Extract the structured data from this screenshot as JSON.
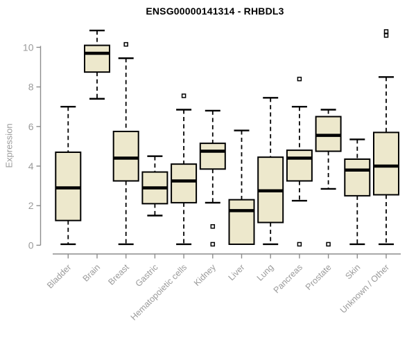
{
  "title": "ENSG00000141314 - RHBDL3",
  "chart_data": {
    "type": "boxplot",
    "title": "ENSG00000141314 - RHBDL3",
    "xlabel": "",
    "ylabel": "Expression",
    "ylim": [
      0,
      10.9
    ],
    "yticks": [
      0,
      2,
      4,
      6,
      8,
      10
    ],
    "grid": false,
    "legend": "none",
    "categories": [
      "Bladder",
      "Brain",
      "Breast",
      "Gastric",
      "Hematopoietic cells",
      "Kidney",
      "Liver",
      "Lung",
      "Pancreas",
      "Prostate",
      "Skin",
      "Unknown / Other"
    ],
    "boxes": [
      {
        "category": "Bladder",
        "whisker_low": 0.05,
        "q1": 1.25,
        "median": 2.9,
        "q3": 4.7,
        "whisker_high": 7.0,
        "outliers": []
      },
      {
        "category": "Brain",
        "whisker_low": 7.4,
        "q1": 8.75,
        "median": 9.7,
        "q3": 10.1,
        "whisker_high": 10.85,
        "outliers": []
      },
      {
        "category": "Breast",
        "whisker_low": 0.05,
        "q1": 3.25,
        "median": 4.4,
        "q3": 5.75,
        "whisker_high": 9.45,
        "outliers": [
          10.15
        ]
      },
      {
        "category": "Gastric",
        "whisker_low": 1.5,
        "q1": 2.1,
        "median": 2.9,
        "q3": 3.7,
        "whisker_high": 4.5,
        "outliers": []
      },
      {
        "category": "Hematopoietic cells",
        "whisker_low": 0.05,
        "q1": 2.15,
        "median": 3.25,
        "q3": 4.1,
        "whisker_high": 6.85,
        "outliers": [
          7.55
        ]
      },
      {
        "category": "Kidney",
        "whisker_low": 2.15,
        "q1": 3.85,
        "median": 4.75,
        "q3": 5.15,
        "whisker_high": 6.8,
        "outliers": [
          0.95,
          0.05
        ]
      },
      {
        "category": "Liver",
        "whisker_low": 0.05,
        "q1": 0.05,
        "median": 1.75,
        "q3": 2.3,
        "whisker_high": 5.8,
        "outliers": []
      },
      {
        "category": "Lung",
        "whisker_low": 0.05,
        "q1": 1.15,
        "median": 2.75,
        "q3": 4.45,
        "whisker_high": 7.45,
        "outliers": []
      },
      {
        "category": "Pancreas",
        "whisker_low": 2.25,
        "q1": 3.25,
        "median": 4.4,
        "q3": 4.8,
        "whisker_high": 7.0,
        "outliers": [
          8.4,
          0.05
        ]
      },
      {
        "category": "Prostate",
        "whisker_low": 2.85,
        "q1": 4.75,
        "median": 5.55,
        "q3": 6.5,
        "whisker_high": 6.85,
        "outliers": [
          0.05
        ]
      },
      {
        "category": "Skin",
        "whisker_low": 0.05,
        "q1": 2.5,
        "median": 3.8,
        "q3": 4.35,
        "whisker_high": 5.35,
        "outliers": []
      },
      {
        "category": "Unknown / Other",
        "whisker_low": 0.05,
        "q1": 2.55,
        "median": 4.0,
        "q3": 5.7,
        "whisker_high": 8.5,
        "outliers": [
          10.8,
          10.6
        ]
      }
    ]
  },
  "colors": {
    "box_fill": "#EDE8CC",
    "box_border": "#000000",
    "median": "#000000",
    "whisker": "#000000",
    "axis_line": "#8c8c8c",
    "tick_label": "#9a9a9a",
    "title": "#000000",
    "background": "#ffffff"
  }
}
